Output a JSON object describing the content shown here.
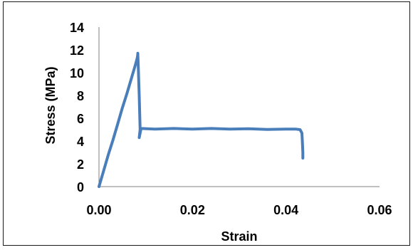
{
  "chart_data": {
    "type": "line",
    "title": "",
    "xlabel": "Strain",
    "ylabel": "Stress (MPa)",
    "xlim": [
      0,
      0.06
    ],
    "ylim": [
      0,
      14
    ],
    "x_ticks": [
      0,
      0.02,
      0.04,
      0.06
    ],
    "x_tick_labels": [
      "0.00",
      "0.02",
      "0.04",
      "0.06"
    ],
    "y_ticks": [
      0,
      2,
      4,
      6,
      8,
      10,
      12,
      14
    ],
    "y_tick_labels": [
      "0",
      "2",
      "4",
      "6",
      "8",
      "10",
      "12",
      "14"
    ],
    "grid": false,
    "legend": "none",
    "series_color": "#4a7ebb",
    "series": [
      {
        "x": [
          0.0,
          0.001,
          0.002,
          0.003,
          0.004,
          0.005,
          0.006,
          0.007,
          0.0078,
          0.0082,
          0.0083,
          0.0083,
          0.0084,
          0.0086,
          0.0088,
          0.0086,
          0.009,
          0.012,
          0.016,
          0.02,
          0.024,
          0.028,
          0.032,
          0.036,
          0.04,
          0.042,
          0.043,
          0.0434,
          0.0435,
          0.0436,
          0.0436
        ],
        "y": [
          0.0,
          1.4,
          2.8,
          4.1,
          5.5,
          6.9,
          8.2,
          9.6,
          10.7,
          11.3,
          11.6,
          11.7,
          10.5,
          8.0,
          5.0,
          4.3,
          5.1,
          5.05,
          5.1,
          5.05,
          5.1,
          5.05,
          5.08,
          5.02,
          5.05,
          5.05,
          5.0,
          4.7,
          4.0,
          3.0,
          2.5
        ]
      }
    ]
  }
}
